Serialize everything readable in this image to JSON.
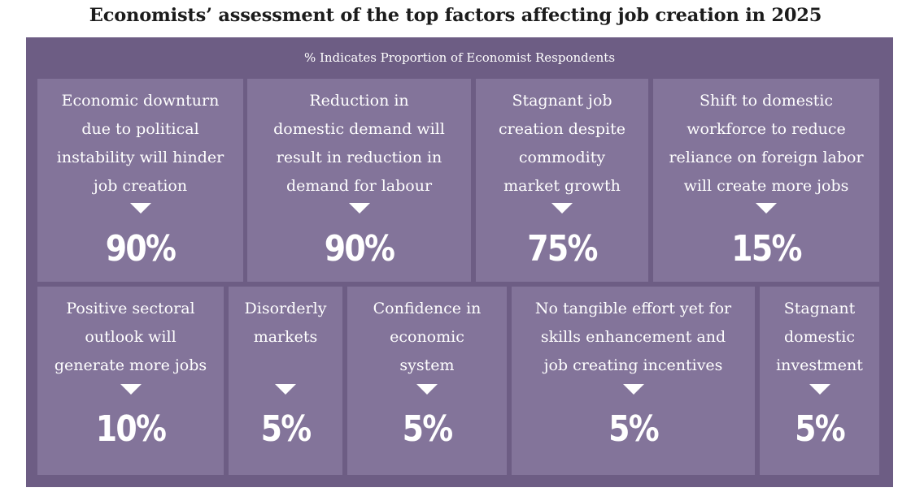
{
  "chart_data": {
    "type": "table",
    "title": "Economists’ assessment of the top factors affecting job creation in 2025",
    "subtitle": "% Indicates Proportion of Economist Respondents",
    "unit": "%",
    "colors": {
      "panel": "#6d5d84",
      "tile": "#83749a",
      "text": "#ffffff"
    },
    "rows": [
      [
        {
          "label": [
            "Economic downturn",
            "due to political",
            "instability will hinder",
            "job creation"
          ],
          "value": 90,
          "display": "90%"
        },
        {
          "label": [
            "Reduction in",
            "domestic demand will",
            "result in reduction in",
            "demand for labour"
          ],
          "value": 90,
          "display": "90%"
        },
        {
          "label": [
            "Stagnant job",
            "creation despite",
            "commodity",
            "market growth"
          ],
          "value": 75,
          "display": "75%"
        },
        {
          "label": [
            "Shift to domestic",
            "workforce to reduce",
            "reliance on foreign labor",
            "will create more jobs"
          ],
          "value": 15,
          "display": "15%"
        }
      ],
      [
        {
          "label": [
            "Positive sectoral",
            "outlook will",
            "generate more jobs"
          ],
          "value": 10,
          "display": "10%"
        },
        {
          "label": [
            "Disorderly",
            "markets"
          ],
          "value": 5,
          "display": "5%"
        },
        {
          "label": [
            "Confidence in",
            "economic",
            "system"
          ],
          "value": 5,
          "display": "5%"
        },
        {
          "label": [
            "No tangible effort yet for",
            "skills enhancement and",
            "job creating incentives"
          ],
          "value": 5,
          "display": "5%"
        },
        {
          "label": [
            "Stagnant",
            "domestic",
            "investment"
          ],
          "value": 5,
          "display": "5%"
        }
      ]
    ]
  }
}
